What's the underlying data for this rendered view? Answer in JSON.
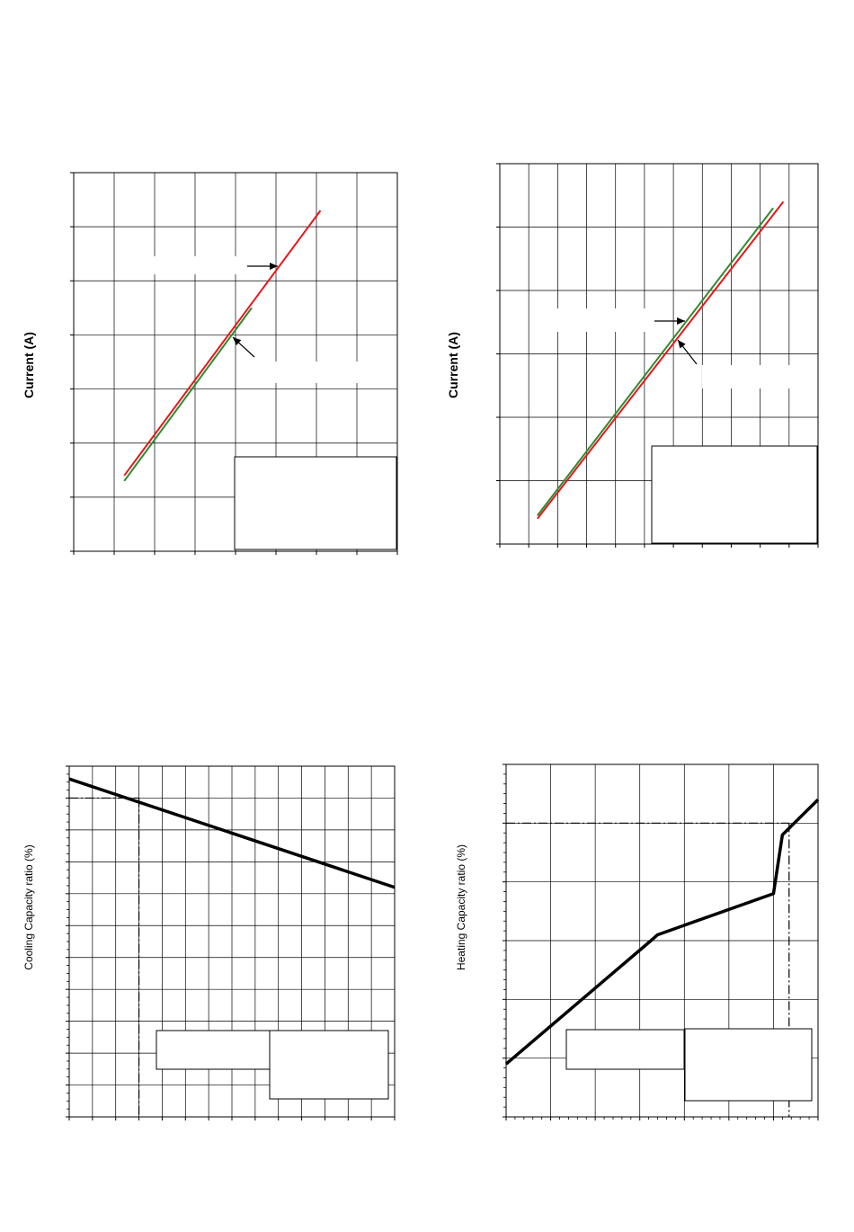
{
  "charts": {
    "current_left": {
      "ylabel": "Current (A)"
    },
    "current_right": {
      "ylabel": "Current (A)"
    },
    "cooling": {
      "ylabel": "Cooling Capacity ratio (%)"
    },
    "heating": {
      "ylabel": "Heating Capacity ratio (%)"
    }
  },
  "colors": {
    "series_a": "#e8151b",
    "series_b": "#2e8b2e",
    "curve": "#000000",
    "grid": "#000000"
  },
  "chart_data": [
    {
      "type": "line",
      "title": "",
      "xlabel": "",
      "ylabel": "Current (A)",
      "grid": true,
      "xlim": [
        0,
        8
      ],
      "ylim": [
        0,
        7
      ],
      "series": [
        {
          "color": "series_a",
          "x": [
            1.25,
            6.1
          ],
          "y": [
            1.4,
            6.3
          ]
        },
        {
          "color": "series_b",
          "x": [
            1.25,
            4.4
          ],
          "y": [
            1.3,
            4.5
          ]
        }
      ]
    },
    {
      "type": "line",
      "title": "",
      "xlabel": "",
      "ylabel": "Current (A)",
      "grid": true,
      "xlim": [
        0,
        11
      ],
      "ylim": [
        0,
        6
      ],
      "series": [
        {
          "color": "series_a",
          "x": [
            1.3,
            9.8
          ],
          "y": [
            0.4,
            5.4
          ]
        },
        {
          "color": "series_b",
          "x": [
            1.3,
            9.45
          ],
          "y": [
            0.45,
            5.3
          ]
        }
      ]
    },
    {
      "type": "line",
      "title": "",
      "xlabel": "",
      "ylabel": "Cooling Capacity ratio (%)",
      "grid": true,
      "xlim": [
        0,
        14
      ],
      "ylim": [
        0,
        11
      ],
      "series": [
        {
          "color": "curve",
          "x": [
            0,
            14
          ],
          "y": [
            10.6,
            7.2
          ]
        }
      ],
      "reference": {
        "x": 3,
        "y": 10.0
      }
    },
    {
      "type": "line",
      "title": "",
      "xlabel": "",
      "ylabel": "Heating Capacity ratio (%)",
      "grid": true,
      "xlim": [
        0,
        7
      ],
      "ylim": [
        0,
        6
      ],
      "series": [
        {
          "color": "curve",
          "x": [
            0,
            3.25,
            3.4,
            6.0,
            6.2,
            7.0
          ],
          "y": [
            0.9,
            3.0,
            3.1,
            3.8,
            4.8,
            5.4
          ]
        }
      ],
      "reference": {
        "x": 6.35,
        "y": 5.0
      }
    }
  ]
}
